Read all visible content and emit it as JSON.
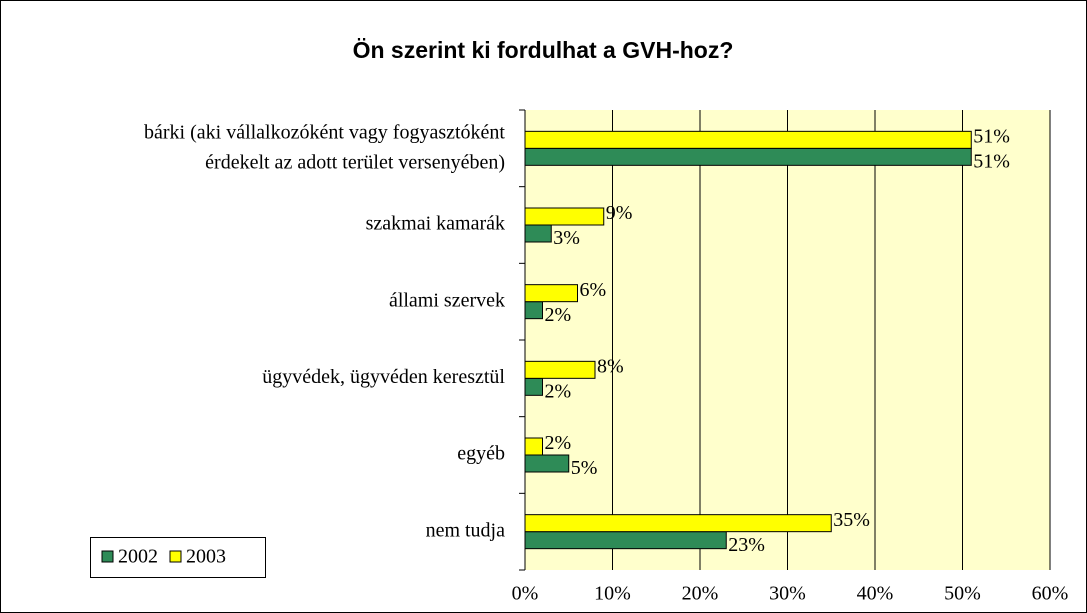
{
  "chart_data": {
    "type": "hbar",
    "title": "Ön szerint ki fordulhat a GVH-hoz?",
    "categories": [
      "bárki (aki vállalkozóként vagy fogyasztóként\nérdekelt az adott terület versenyében)",
      "szakmai kamarák",
      "állami szervek",
      "ügyvédek, ügyvéden keresztül",
      "egyéb",
      "nem tudja"
    ],
    "series": [
      {
        "name": "2002",
        "color": "#2e8b57",
        "values": [
          51,
          3,
          2,
          2,
          5,
          23
        ],
        "value_labels": [
          "51%",
          "3%",
          "2%",
          "2%",
          "5%",
          "23%"
        ]
      },
      {
        "name": "2003",
        "color": "#ffff00",
        "values": [
          51,
          9,
          6,
          8,
          2,
          35
        ],
        "value_labels": [
          "51%",
          "9%",
          "6%",
          "8%",
          "2%",
          "35%"
        ]
      }
    ],
    "xlim": [
      0,
      60
    ],
    "xticks": [
      {
        "value": 0,
        "label": "0%"
      },
      {
        "value": 10,
        "label": "10%"
      },
      {
        "value": 20,
        "label": "20%"
      },
      {
        "value": 30,
        "label": "30%"
      },
      {
        "value": 40,
        "label": "40%"
      },
      {
        "value": 50,
        "label": "50%"
      },
      {
        "value": 60,
        "label": "60%"
      }
    ],
    "grid": true,
    "legend": "lower left"
  }
}
